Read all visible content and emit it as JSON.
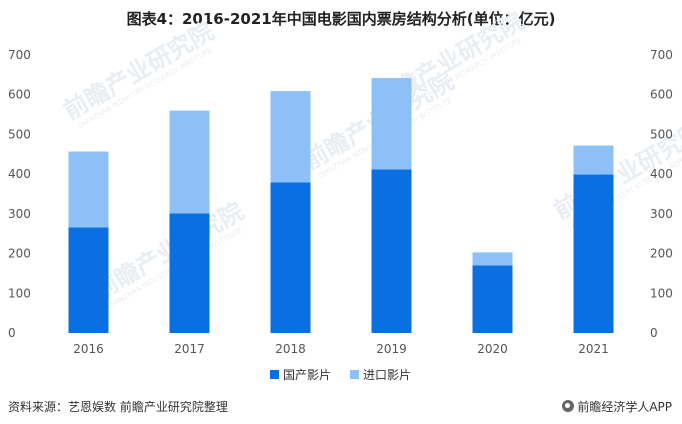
{
  "chart_data": {
    "type": "bar",
    "stacked": true,
    "title": "图表4：2016-2021年中国电影国内票房结构分析(单位：亿元)",
    "categories": [
      "2016",
      "2017",
      "2018",
      "2019",
      "2020",
      "2021"
    ],
    "series": [
      {
        "name": "国产影片",
        "values": [
          266,
          301,
          379,
          412,
          170,
          399
        ],
        "color": "#0a6fe0"
      },
      {
        "name": "进口影片",
        "values": [
          191,
          259,
          230,
          230,
          33,
          73
        ],
        "color": "#8dc0f7"
      }
    ],
    "ylim": [
      0,
      700
    ],
    "yticks": [
      "0",
      "100",
      "200",
      "300",
      "400",
      "500",
      "600",
      "700"
    ],
    "grid": false,
    "legend_position": "bottom-center",
    "xlabel": "",
    "ylabel": ""
  },
  "watermark": {
    "text": "前瞻产业研究院",
    "sub": "QIANZHAN INDUSTRY RESEARCH INSTITUTE"
  },
  "footer": {
    "source": "资料来源：艺恩娱数 前瞻产业研究院整理",
    "brand": "前瞻经济学人APP"
  }
}
